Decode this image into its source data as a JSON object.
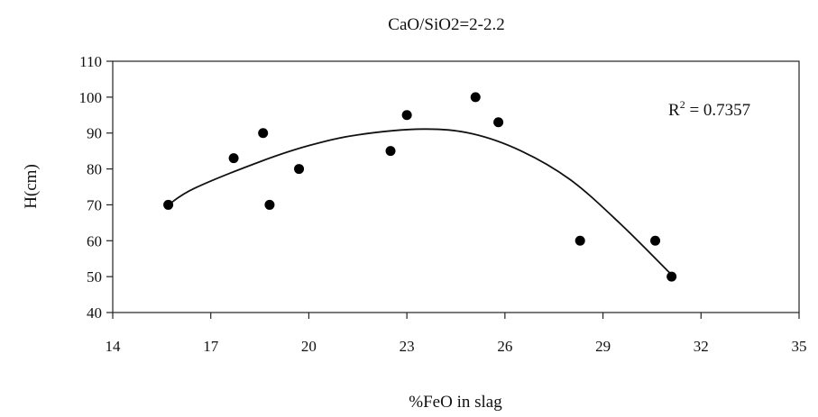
{
  "chart_data": {
    "type": "scatter",
    "title": "CaO/SiO2=2-2.2",
    "xlabel": "%FeO in slag",
    "ylabel": "H(cm)",
    "xlim": [
      14,
      35
    ],
    "ylim": [
      40,
      110
    ],
    "xticks": [
      14,
      17,
      20,
      23,
      26,
      29,
      32,
      35
    ],
    "yticks": [
      40,
      50,
      60,
      70,
      80,
      90,
      100,
      110
    ],
    "grid": false,
    "points": [
      {
        "x": 15.7,
        "y": 70
      },
      {
        "x": 17.7,
        "y": 83
      },
      {
        "x": 18.6,
        "y": 90
      },
      {
        "x": 18.8,
        "y": 70
      },
      {
        "x": 19.7,
        "y": 80
      },
      {
        "x": 22.5,
        "y": 85
      },
      {
        "x": 23.0,
        "y": 95
      },
      {
        "x": 25.1,
        "y": 100
      },
      {
        "x": 25.8,
        "y": 93
      },
      {
        "x": 28.3,
        "y": 60
      },
      {
        "x": 30.6,
        "y": 60
      },
      {
        "x": 31.1,
        "y": 50
      }
    ],
    "trendline": {
      "type": "polynomial",
      "curve": [
        {
          "x": 15.7,
          "y": 70
        },
        {
          "x": 16.5,
          "y": 74.6
        },
        {
          "x": 18.5,
          "y": 82.0
        },
        {
          "x": 20.0,
          "y": 86.5
        },
        {
          "x": 21.5,
          "y": 89.5
        },
        {
          "x": 23.5,
          "y": 91.1
        },
        {
          "x": 25.0,
          "y": 89.8
        },
        {
          "x": 26.5,
          "y": 85.0
        },
        {
          "x": 28.0,
          "y": 77.0
        },
        {
          "x": 29.5,
          "y": 65.0
        },
        {
          "x": 31.1,
          "y": 50.5
        }
      ],
      "r2_label": "R",
      "r2_sup": "2",
      "r2_value": " = 0.7357"
    }
  }
}
